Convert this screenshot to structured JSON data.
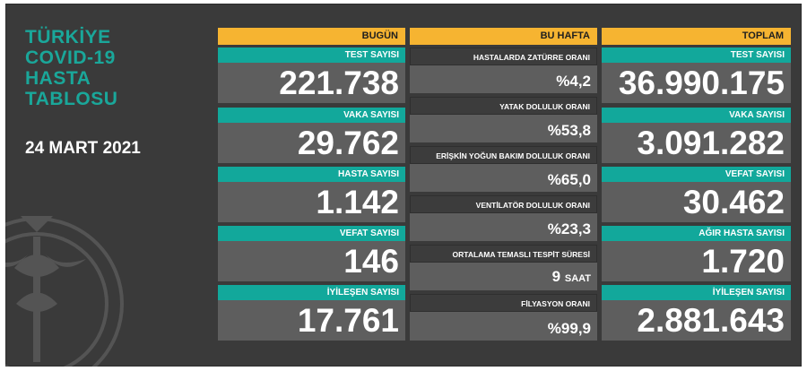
{
  "title_lines": [
    "TÜRKİYE",
    "COVID-19",
    "HASTA",
    "TABLOSU"
  ],
  "date": "24 MART 2021",
  "headers": {
    "today": "BUGÜN",
    "week": "BU HAFTA",
    "total": "TOPLAM"
  },
  "today": [
    {
      "label": "TEST SAYISI",
      "value": "221.738"
    },
    {
      "label": "VAKA SAYISI",
      "value": "29.762"
    },
    {
      "label": "HASTA SAYISI",
      "value": "1.142"
    },
    {
      "label": "VEFAT SAYISI",
      "value": "146"
    },
    {
      "label": "İYİLEŞEN SAYISI",
      "value": "17.761"
    }
  ],
  "week": [
    {
      "label": "HASTALARDA ZATÜRRE ORANI",
      "value": "%4,2"
    },
    {
      "label": "YATAK DOLULUK ORANI",
      "value": "%53,8"
    },
    {
      "label": "ERİŞKİN YOĞUN BAKIM DOLULUK ORANI",
      "value": "%65,0"
    },
    {
      "label": "VENTİLATÖR DOLULUK ORANI",
      "value": "%23,3"
    },
    {
      "label": "ORTALAMA TEMASLI TESPİT SÜRESİ",
      "value": "9",
      "unit": "SAAT"
    },
    {
      "label": "FİLYASYON ORANI",
      "value": "%99,9"
    }
  ],
  "total": [
    {
      "label": "TEST SAYISI",
      "value": "36.990.175"
    },
    {
      "label": "VAKA SAYISI",
      "value": "3.091.282"
    },
    {
      "label": "VEFAT SAYISI",
      "value": "30.462"
    },
    {
      "label": "AĞIR HASTA SAYISI",
      "value": "1.720"
    },
    {
      "label": "İYİLEŞEN SAYISI",
      "value": "2.881.643"
    }
  ],
  "colors": {
    "teal": "#12a89b",
    "header_orange": "#f6b431",
    "background": "#3a3a3a"
  },
  "icons": [
    "ministry-emblem-icon"
  ]
}
